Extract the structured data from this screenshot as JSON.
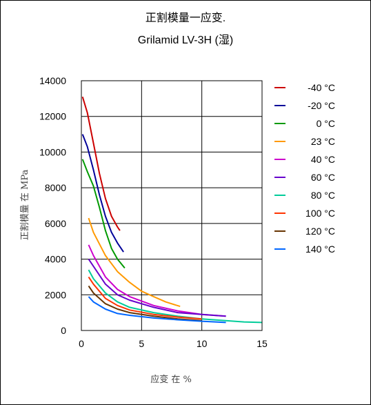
{
  "chart_data": {
    "type": "line",
    "title": "正割模量一应变.",
    "subtitle": "Grilamid LV-3H (湿)",
    "xlabel": "应变 在 %",
    "ylabel": "正割模量 在  MPa",
    "xlim": [
      0,
      15
    ],
    "ylim": [
      0,
      14000
    ],
    "x_ticks": [
      "0",
      "5",
      "10",
      "15"
    ],
    "y_ticks": [
      "0",
      "2000",
      "4000",
      "6000",
      "8000",
      "10000",
      "12000",
      "14000"
    ],
    "grid": true,
    "legend_position": "right",
    "series": [
      {
        "name": "-40 °C",
        "color": "#cc0000",
        "x": [
          0.1,
          0.5,
          1.0,
          1.5,
          2.0,
          2.5,
          3.0,
          3.2
        ],
        "y": [
          13100,
          12200,
          10500,
          8800,
          7400,
          6400,
          5800,
          5600
        ]
      },
      {
        "name": "-20 °C",
        "color": "#000099",
        "x": [
          0.1,
          0.5,
          1.0,
          1.5,
          2.0,
          2.5,
          3.0,
          3.5
        ],
        "y": [
          11000,
          10300,
          9000,
          7600,
          6400,
          5500,
          4900,
          4400
        ]
      },
      {
        "name": "0 °C",
        "color": "#009900",
        "x": [
          0.1,
          0.5,
          1.0,
          1.5,
          2.0,
          2.5,
          3.0,
          3.6
        ],
        "y": [
          9600,
          8900,
          8100,
          6900,
          5600,
          4600,
          4000,
          3500
        ]
      },
      {
        "name": "23 °C",
        "color": "#ff9900",
        "x": [
          0.6,
          1.0,
          2.0,
          3.0,
          4.0,
          5.0,
          6.0,
          7.0,
          8.2
        ],
        "y": [
          6300,
          5500,
          4200,
          3300,
          2700,
          2200,
          1900,
          1600,
          1350
        ]
      },
      {
        "name": "40 °C",
        "color": "#cc00cc",
        "x": [
          0.6,
          1.0,
          2.0,
          3.0,
          4.0,
          6.0,
          8.0,
          10.0,
          12.0
        ],
        "y": [
          4800,
          4200,
          3000,
          2300,
          1900,
          1400,
          1100,
          900,
          800
        ]
      },
      {
        "name": "60 °C",
        "color": "#6600cc",
        "x": [
          0.6,
          1.0,
          2.0,
          3.0,
          4.0,
          6.0,
          8.0,
          10.0,
          12.0
        ],
        "y": [
          4000,
          3600,
          2600,
          2000,
          1700,
          1300,
          1000,
          900,
          800
        ]
      },
      {
        "name": "80 °C",
        "color": "#00cc99",
        "x": [
          0.6,
          1.0,
          2.0,
          3.0,
          4.0,
          6.0,
          8.0,
          10.0,
          12.0,
          13.5,
          15.0
        ],
        "y": [
          3400,
          2900,
          2100,
          1600,
          1300,
          1000,
          800,
          650,
          550,
          480,
          450
        ]
      },
      {
        "name": "100 °C",
        "color": "#ff3300",
        "x": [
          0.6,
          1.0,
          2.0,
          3.0,
          4.0,
          6.0,
          8.0,
          10.0
        ],
        "y": [
          3000,
          2600,
          1800,
          1400,
          1150,
          900,
          750,
          650
        ]
      },
      {
        "name": "120 °C",
        "color": "#663300",
        "x": [
          0.6,
          1.0,
          2.0,
          3.0,
          4.0,
          6.0,
          8.0,
          10.0
        ],
        "y": [
          2500,
          2100,
          1500,
          1200,
          1000,
          800,
          650,
          550
        ]
      },
      {
        "name": "140 °C",
        "color": "#0066ff",
        "x": [
          0.6,
          1.0,
          2.0,
          3.0,
          4.0,
          6.0,
          8.0,
          10.0,
          12.0
        ],
        "y": [
          1900,
          1600,
          1200,
          950,
          850,
          700,
          600,
          520,
          450
        ]
      }
    ]
  }
}
